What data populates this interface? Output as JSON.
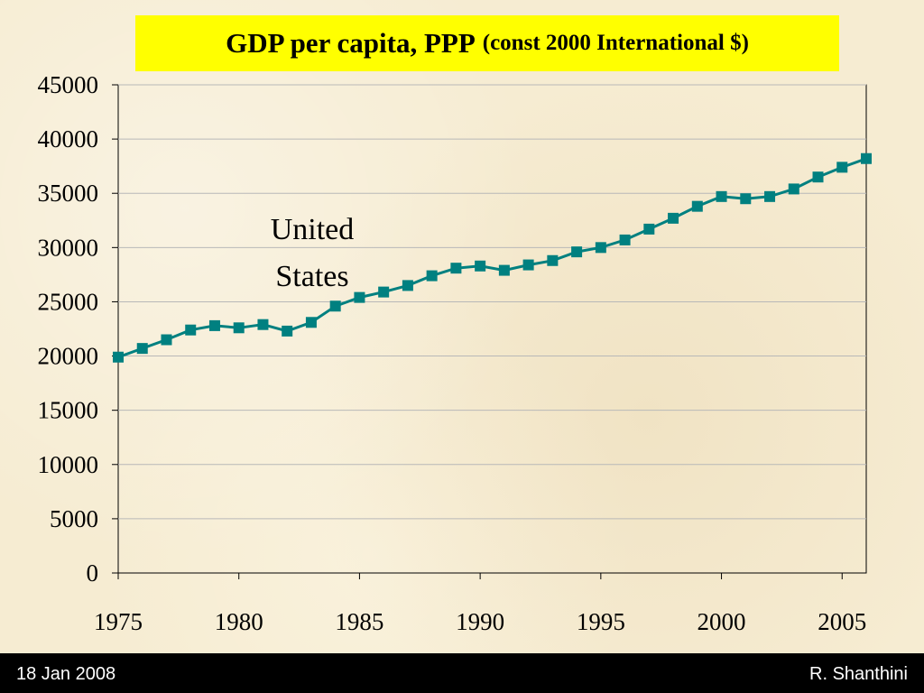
{
  "chart_data": {
    "type": "line",
    "title": "GDP per capita, PPP",
    "subtitle": "(const 2000 International $)",
    "xlabel": "",
    "ylabel": "",
    "x": [
      1975,
      1976,
      1977,
      1978,
      1979,
      1980,
      1981,
      1982,
      1983,
      1984,
      1985,
      1986,
      1987,
      1988,
      1989,
      1990,
      1991,
      1992,
      1993,
      1994,
      1995,
      1996,
      1997,
      1998,
      1999,
      2000,
      2001,
      2002,
      2003,
      2004,
      2005,
      2006
    ],
    "series": [
      {
        "name": "United States",
        "values": [
          19900,
          20700,
          21500,
          22400,
          22800,
          22600,
          22900,
          22300,
          23100,
          24600,
          25400,
          25900,
          26500,
          27400,
          28100,
          28300,
          27900,
          28400,
          28800,
          29600,
          30000,
          30700,
          31700,
          32700,
          33800,
          34700,
          34500,
          34700,
          35400,
          36500,
          37400,
          38200
        ],
        "color": "#008080"
      }
    ],
    "xlim": [
      1975,
      2006
    ],
    "ylim": [
      0,
      45000
    ],
    "x_ticks": [
      1975,
      1980,
      1985,
      1990,
      1995,
      2000,
      2005
    ],
    "y_ticks": [
      0,
      5000,
      10000,
      15000,
      20000,
      25000,
      30000,
      35000,
      40000,
      45000
    ],
    "grid": true,
    "annotation": {
      "line1": "United",
      "line2": "States"
    }
  },
  "footer": {
    "date": "18 Jan 2008",
    "author": "R. Shanthini"
  }
}
